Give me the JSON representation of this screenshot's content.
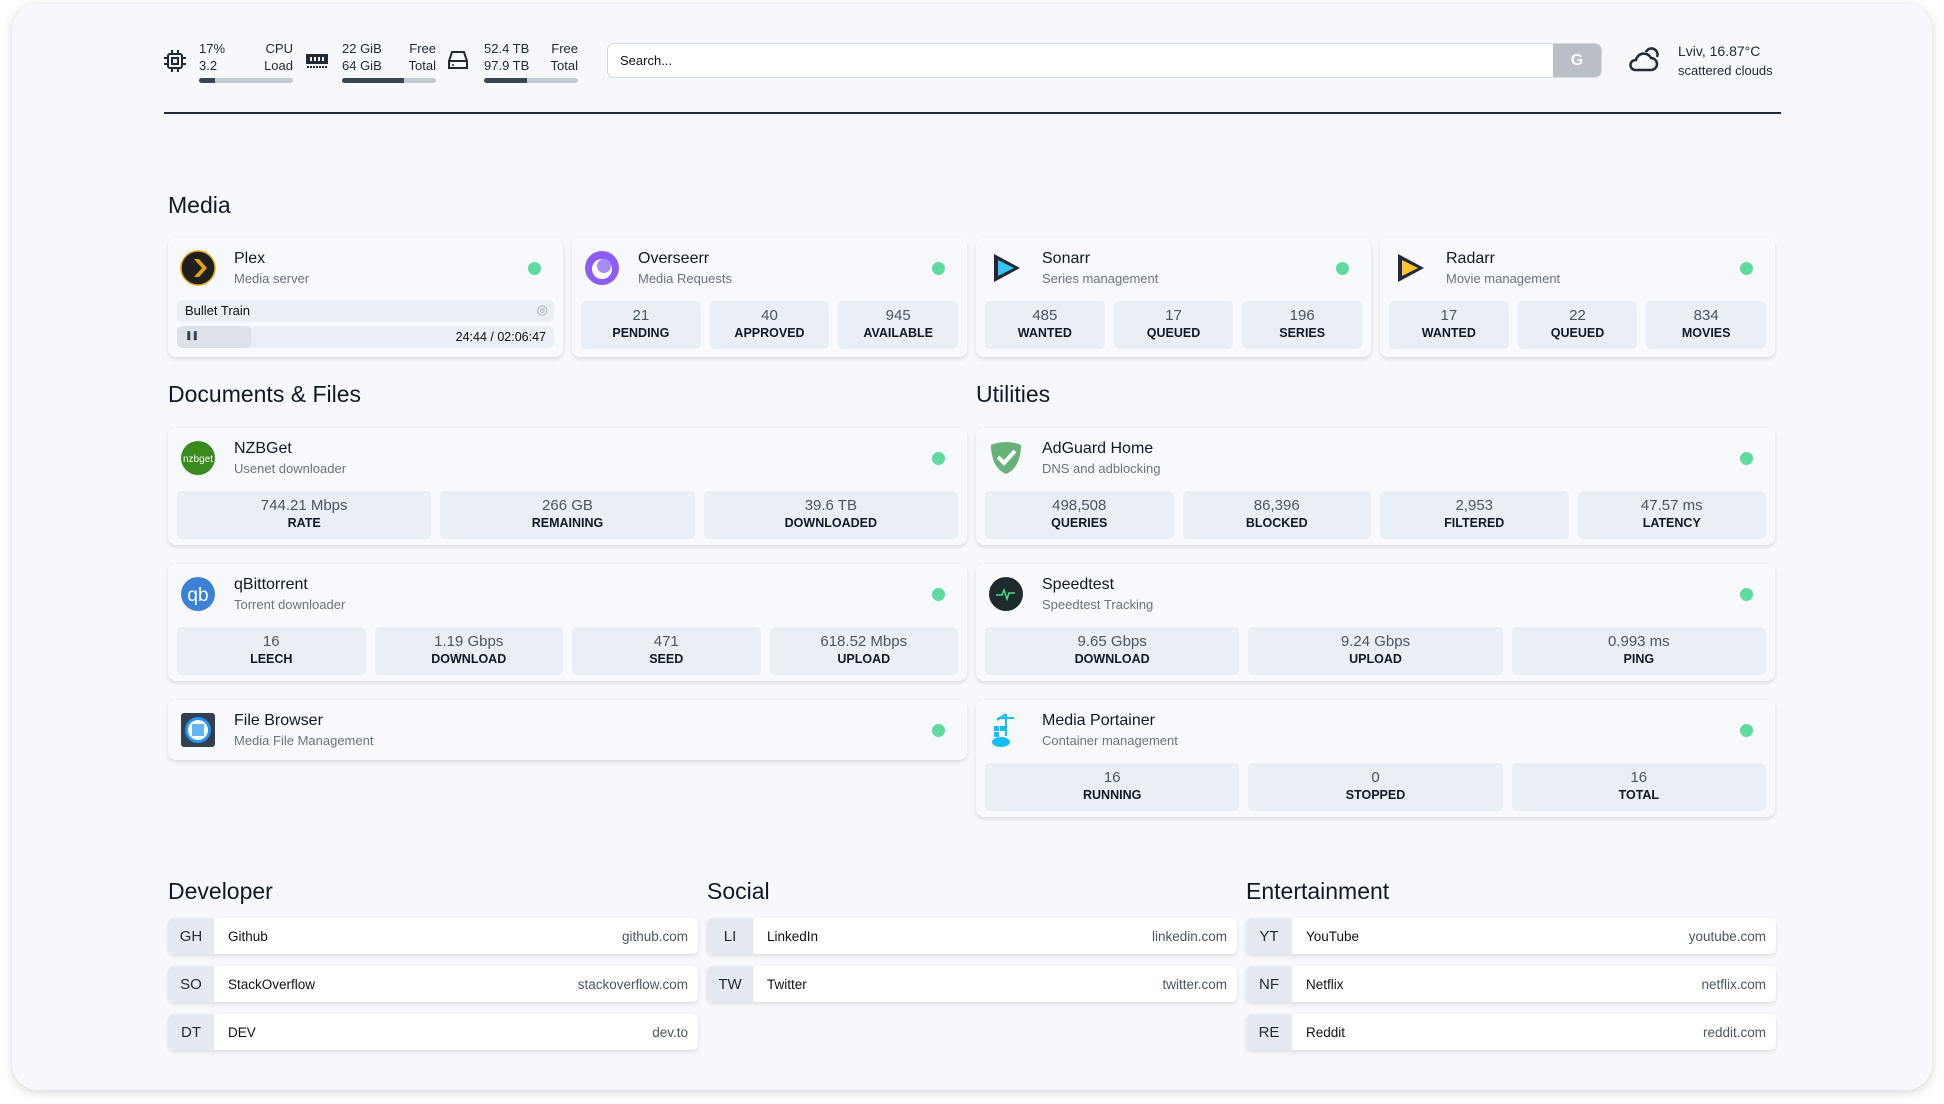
{
  "header": {
    "cpu": {
      "usage": "17%",
      "usage_label": "CPU",
      "load": "3.2",
      "load_label": "Load",
      "bar_percent": 17
    },
    "memory": {
      "free": "22 GiB",
      "free_label": "Free",
      "total": "64 GiB",
      "total_label": "Total",
      "bar_percent": 66
    },
    "disk": {
      "free": "52.4 TB",
      "free_label": "Free",
      "total": "97.9 TB",
      "total_label": "Total",
      "bar_percent": 46
    },
    "search": {
      "placeholder": "Search...",
      "engine_button": "G"
    },
    "weather": {
      "location_temp": "Lviv, 16.87°C",
      "description": "scattered clouds"
    }
  },
  "colors": {
    "status_ok": "#5fdba0",
    "accent": "#1f2937"
  },
  "sections": {
    "media": "Media",
    "documents": "Documents & Files",
    "utilities": "Utilities",
    "developer": "Developer",
    "social": "Social",
    "entertainment": "Entertainment"
  },
  "media": [
    {
      "name": "Plex",
      "desc": "Media server",
      "icon": "plex-icon",
      "now_playing": {
        "title": "Bullet Train",
        "time": "24:44 / 02:06:47",
        "progress_percent": 19.5
      }
    },
    {
      "name": "Overseerr",
      "desc": "Media Requests",
      "icon": "overseerr-icon",
      "stats": [
        {
          "v": "21",
          "l": "PENDING"
        },
        {
          "v": "40",
          "l": "APPROVED"
        },
        {
          "v": "945",
          "l": "AVAILABLE"
        }
      ]
    },
    {
      "name": "Sonarr",
      "desc": "Series management",
      "icon": "sonarr-icon",
      "stats": [
        {
          "v": "485",
          "l": "WANTED"
        },
        {
          "v": "17",
          "l": "QUEUED"
        },
        {
          "v": "196",
          "l": "SERIES"
        }
      ]
    },
    {
      "name": "Radarr",
      "desc": "Movie management",
      "icon": "radarr-icon",
      "stats": [
        {
          "v": "17",
          "l": "WANTED"
        },
        {
          "v": "22",
          "l": "QUEUED"
        },
        {
          "v": "834",
          "l": "MOVIES"
        }
      ]
    }
  ],
  "documents": [
    {
      "name": "NZBGet",
      "desc": "Usenet downloader",
      "icon": "nzbget-icon",
      "stats": [
        {
          "v": "744.21 Mbps",
          "l": "RATE"
        },
        {
          "v": "266 GB",
          "l": "REMAINING"
        },
        {
          "v": "39.6 TB",
          "l": "DOWNLOADED"
        }
      ]
    },
    {
      "name": "qBittorrent",
      "desc": "Torrent downloader",
      "icon": "qbittorrent-icon",
      "stats": [
        {
          "v": "16",
          "l": "LEECH"
        },
        {
          "v": "1.19 Gbps",
          "l": "DOWNLOAD"
        },
        {
          "v": "471",
          "l": "SEED"
        },
        {
          "v": "618.52 Mbps",
          "l": "UPLOAD"
        }
      ]
    },
    {
      "name": "File Browser",
      "desc": "Media File Management",
      "icon": "file-browser-icon",
      "stats": []
    }
  ],
  "utilities": [
    {
      "name": "AdGuard Home",
      "desc": "DNS and adblocking",
      "icon": "adguard-icon",
      "stats": [
        {
          "v": "498,508",
          "l": "QUERIES"
        },
        {
          "v": "86,396",
          "l": "BLOCKED"
        },
        {
          "v": "2,953",
          "l": "FILTERED"
        },
        {
          "v": "47.57 ms",
          "l": "LATENCY"
        }
      ]
    },
    {
      "name": "Speedtest",
      "desc": "Speedtest Tracking",
      "icon": "speedtest-icon",
      "stats": [
        {
          "v": "9.65 Gbps",
          "l": "DOWNLOAD"
        },
        {
          "v": "9.24 Gbps",
          "l": "UPLOAD"
        },
        {
          "v": "0.993 ms",
          "l": "PING"
        }
      ]
    },
    {
      "name": "Media Portainer",
      "desc": "Container management",
      "icon": "portainer-icon",
      "stats": [
        {
          "v": "16",
          "l": "RUNNING"
        },
        {
          "v": "0",
          "l": "STOPPED"
        },
        {
          "v": "16",
          "l": "TOTAL"
        }
      ]
    }
  ],
  "bookmarks": {
    "developer": [
      {
        "abbr": "GH",
        "name": "Github",
        "url": "github.com"
      },
      {
        "abbr": "SO",
        "name": "StackOverflow",
        "url": "stackoverflow.com"
      },
      {
        "abbr": "DT",
        "name": "DEV",
        "url": "dev.to"
      }
    ],
    "social": [
      {
        "abbr": "LI",
        "name": "LinkedIn",
        "url": "linkedin.com"
      },
      {
        "abbr": "TW",
        "name": "Twitter",
        "url": "twitter.com"
      }
    ],
    "entertainment": [
      {
        "abbr": "YT",
        "name": "YouTube",
        "url": "youtube.com"
      },
      {
        "abbr": "NF",
        "name": "Netflix",
        "url": "netflix.com"
      },
      {
        "abbr": "RE",
        "name": "Reddit",
        "url": "reddit.com"
      }
    ]
  }
}
